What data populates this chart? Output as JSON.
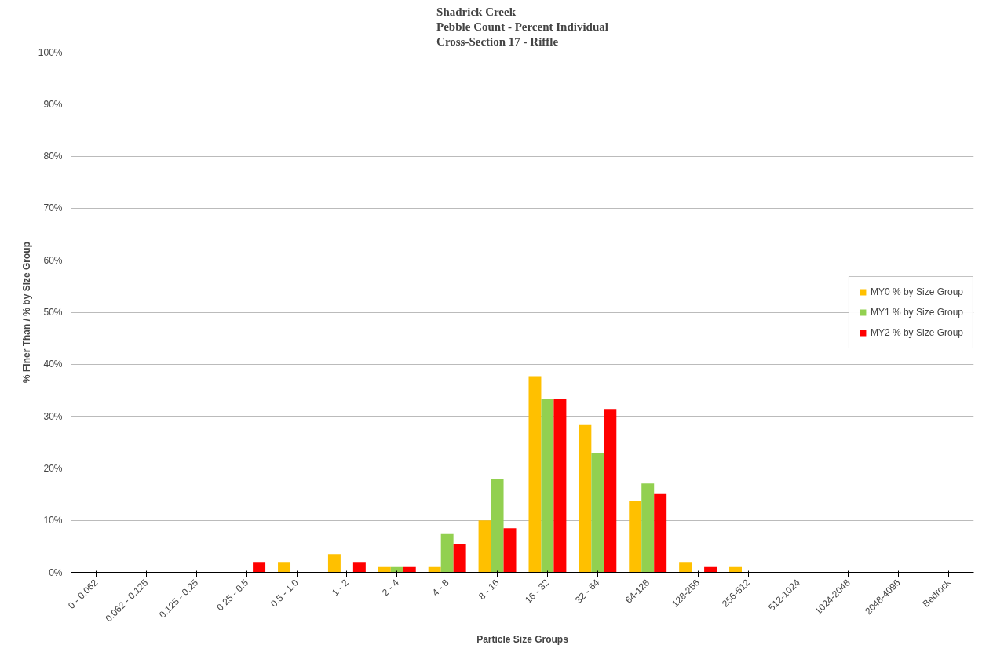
{
  "chart_data": {
    "type": "bar",
    "title": "Shadrick Creek\nPebble Count - Percent Individual\nCross-Section 17 - Riffle",
    "xlabel": "Particle Size Groups",
    "ylabel": "% Finer Than / % by Size Group",
    "categories": [
      "0 - 0.062",
      "0.062 - 0.125",
      "0.125 - 0.25",
      "0.25 - 0.5",
      "0.5 - 1.0",
      "1 - 2",
      "2 - 4",
      "4 - 8",
      "8 - 16",
      "16 - 32",
      "32 - 64",
      "64-128",
      "128-256",
      "256-512",
      "512-1024",
      "1024-2048",
      "2048-4096",
      "Bedrock"
    ],
    "series": [
      {
        "name": "MY0 % by Size Group",
        "color": "#ffc000",
        "values": [
          0,
          0,
          0,
          0,
          2,
          3.5,
          1,
          1,
          10,
          37.7,
          28.3,
          13.8,
          2,
          1,
          0,
          0,
          0,
          0
        ]
      },
      {
        "name": "MY1 % by Size Group",
        "color": "#92d050",
        "values": [
          0,
          0,
          0,
          0,
          0,
          0,
          1,
          7.5,
          18,
          33.3,
          22.9,
          17.1,
          0,
          0,
          0,
          0,
          0,
          0
        ]
      },
      {
        "name": "MY2 % by Size Group",
        "color": "#ff0000",
        "values": [
          0,
          0,
          0,
          2,
          0,
          2,
          1,
          5.5,
          8.5,
          33.3,
          31.4,
          15.2,
          1,
          0,
          0,
          0,
          0,
          0
        ]
      }
    ],
    "ylim": [
      0,
      100
    ],
    "yticks": [
      {
        "value": 0,
        "label": "0%"
      },
      {
        "value": 10,
        "label": "10%"
      },
      {
        "value": 20,
        "label": "20%"
      },
      {
        "value": 30,
        "label": "30%"
      },
      {
        "value": 40,
        "label": "40%"
      },
      {
        "value": 50,
        "label": "50%"
      },
      {
        "value": 60,
        "label": "60%"
      },
      {
        "value": 70,
        "label": "70%"
      },
      {
        "value": 80,
        "label": "80%"
      },
      {
        "value": 90,
        "label": "90%"
      },
      {
        "value": 100,
        "label": "100%"
      }
    ],
    "grid": "y",
    "legend": "right"
  }
}
